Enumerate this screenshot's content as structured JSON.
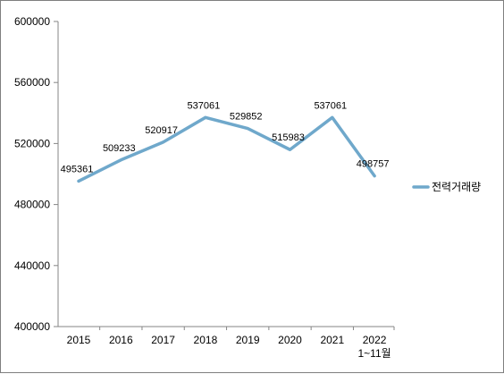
{
  "chart_data": {
    "type": "line",
    "categories": [
      "2015",
      "2016",
      "2017",
      "2018",
      "2019",
      "2020",
      "2021",
      "2022\n1~11월"
    ],
    "series": [
      {
        "name": "전력거래량",
        "values": [
          495361,
          509233,
          520917,
          537061,
          529852,
          515983,
          537061,
          498757
        ],
        "color": "#6fa8cb"
      }
    ],
    "y_ticks": [
      "400000",
      "440000",
      "480000",
      "520000",
      "560000",
      "600000"
    ],
    "ylim": [
      400000,
      600000
    ],
    "legend_position": "right",
    "grid": false
  }
}
